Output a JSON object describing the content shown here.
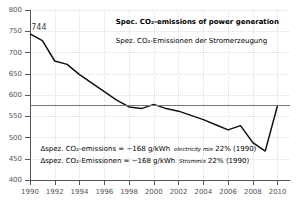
{
  "chart_data": {
    "type": "line",
    "x": [
      1990,
      1991,
      1992,
      1993,
      1994,
      1995,
      1996,
      1997,
      1998,
      1999,
      2000,
      2001,
      2002,
      2003,
      2004,
      2005,
      2006,
      2007,
      2008,
      2009,
      2010
    ],
    "values": [
      744,
      728,
      680,
      672,
      648,
      628,
      608,
      588,
      572,
      568,
      578,
      568,
      562,
      552,
      542,
      530,
      518,
      528,
      488,
      468,
      576
    ],
    "color": "#111111",
    "xlim": [
      1990,
      2011
    ],
    "ylim": [
      400,
      800
    ],
    "xticks": [
      1990,
      1992,
      1994,
      1996,
      1998,
      2000,
      2002,
      2004,
      2006,
      2008,
      2010
    ],
    "yticks": [
      400,
      450,
      500,
      550,
      600,
      650,
      700,
      750,
      800
    ],
    "grid": true,
    "reference_lines": [
      {
        "y": 576,
        "color": "#777777"
      }
    ],
    "annotations": [
      {
        "text": "744",
        "x": 1990.1,
        "y": 760
      }
    ],
    "text_lines": [
      "Spec. CO₂-emissions of power generation",
      "Spez. CO₂-Emissionen der Stromerzeugung"
    ],
    "notes": [
      [
        "Δspez. CO₂-emissions = −168 g/kWh",
        "electricity mix",
        " 22% (1990)"
      ],
      [
        "Δspez. CO₂-Emissionen = −168 g/kWh",
        "Strommix",
        " 22% (1990)"
      ]
    ]
  }
}
